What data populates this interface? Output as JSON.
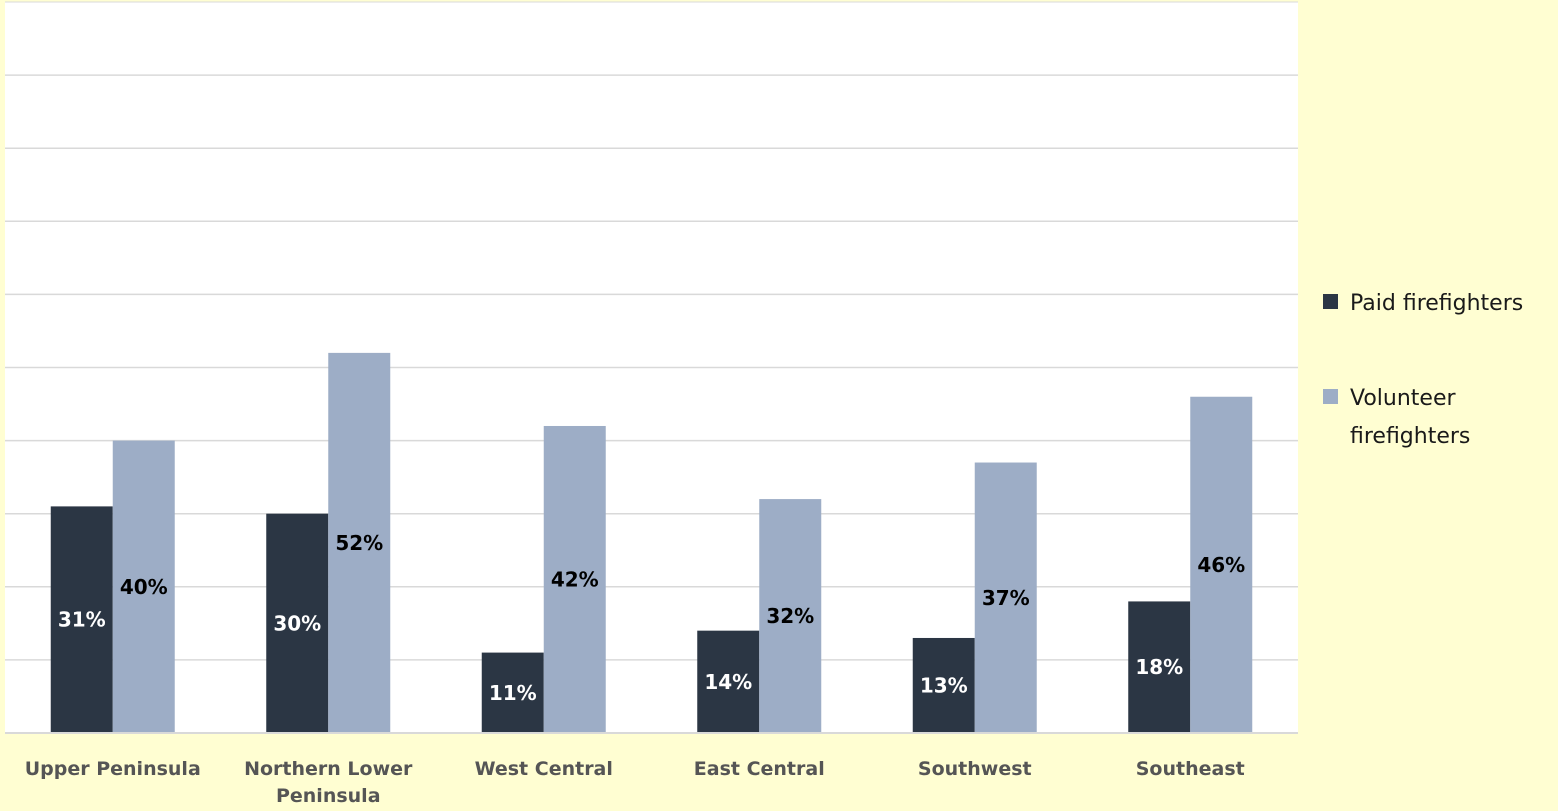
{
  "chart_data": {
    "type": "bar",
    "categories": [
      "Upper Peninsula",
      "Northern Lower Peninsula",
      "West Central",
      "East Central",
      "Southwest",
      "Southeast"
    ],
    "category_lines": [
      [
        "Upper Peninsula"
      ],
      [
        "Northern Lower",
        "Peninsula"
      ],
      [
        "West Central"
      ],
      [
        "East Central"
      ],
      [
        "Southwest"
      ],
      [
        "Southeast"
      ]
    ],
    "series": [
      {
        "name": "Paid firefighters",
        "legend_lines": [
          "Paid firefighters"
        ],
        "values": [
          31,
          30,
          11,
          14,
          13,
          18
        ],
        "labels": [
          "31%",
          "30%",
          "11%",
          "14%",
          "13%",
          "18%"
        ],
        "color": "#2b3644",
        "label_color": "#ffffff"
      },
      {
        "name": "Volunteer firefighters",
        "legend_lines": [
          "Volunteer",
          "firefighters"
        ],
        "values": [
          40,
          52,
          42,
          32,
          37,
          46
        ],
        "labels": [
          "40%",
          "52%",
          "42%",
          "32%",
          "37%",
          "46%"
        ],
        "color": "#9dadc6",
        "label_color": "#000000"
      }
    ],
    "ylim": [
      0,
      100
    ],
    "grid": true,
    "legend_position": "right",
    "colors": {
      "background": "#fffed2",
      "grid": "#d9d9d9",
      "axis_labels": "#555555"
    }
  }
}
